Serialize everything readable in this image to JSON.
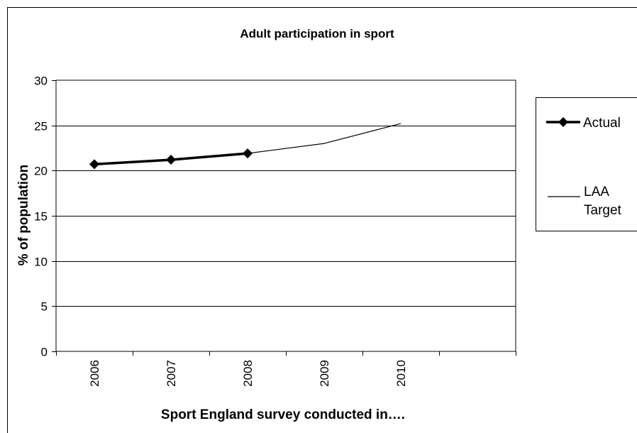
{
  "chart_data": {
    "type": "line",
    "title": "Adult participation in sport",
    "xlabel": "Sport England survey conducted in….",
    "ylabel": "% of population",
    "categories": [
      "2006",
      "2007",
      "2008",
      "2009",
      "2010",
      ""
    ],
    "ylim": [
      0,
      30
    ],
    "yticks": [
      0,
      5,
      10,
      15,
      20,
      25,
      30
    ],
    "grid": true,
    "legend_position": "right",
    "series": [
      {
        "name": "Actual",
        "values": [
          20.7,
          21.2,
          21.9,
          null,
          null,
          null
        ],
        "color": "#000000",
        "marker": "diamond",
        "style": "bold"
      },
      {
        "name": "LAA Target",
        "values": [
          null,
          null,
          21.9,
          23.0,
          25.2,
          null
        ],
        "color": "#000000",
        "marker": "none",
        "style": "thin"
      }
    ],
    "legend_entries": {
      "actual": "Actual",
      "laa_line1": "LAA",
      "laa_line2": "Target"
    }
  }
}
